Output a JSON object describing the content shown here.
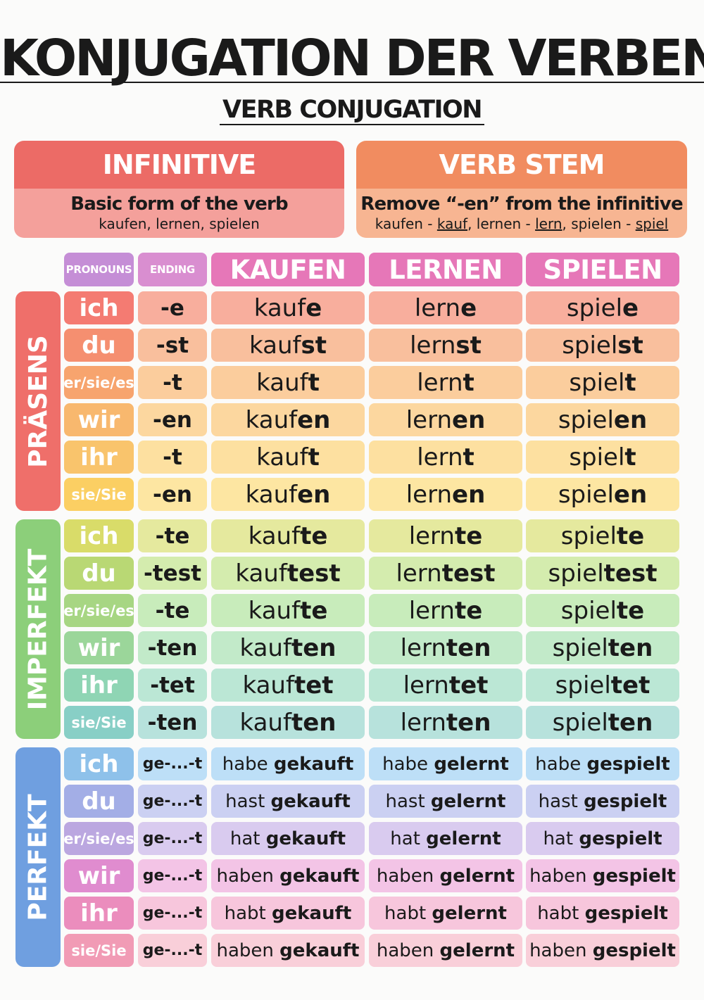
{
  "title": "KONJUGATION DER VERBEN",
  "subtitle": "VERB CONJUGATION",
  "infinitive_box": {
    "heading": "INFINITIVE",
    "description": "Basic form of the verb",
    "examples": "kaufen, lernen, spielen"
  },
  "stem_box": {
    "heading": "VERB STEM",
    "description": "Remove “-en” from the infinitive",
    "examples": [
      {
        "inf": "kaufen",
        "stem": "kauf"
      },
      {
        "inf": "lernen",
        "stem": "lern"
      },
      {
        "inf": "spielen",
        "stem": "spiel"
      }
    ]
  },
  "table": {
    "headers": {
      "pronouns": "PRONOUNS",
      "ending": "ENDING",
      "verbs": [
        "KAUFEN",
        "LERNEN",
        "SPIELEN"
      ]
    },
    "tenses": [
      {
        "name": "PRÄSENS",
        "rows": [
          {
            "pronoun": "ich",
            "ending": "-e",
            "forms": [
              [
                "kauf",
                "e"
              ],
              [
                "lern",
                "e"
              ],
              [
                "spiel",
                "e"
              ]
            ]
          },
          {
            "pronoun": "du",
            "ending": "-st",
            "forms": [
              [
                "kauf",
                "st"
              ],
              [
                "lern",
                "st"
              ],
              [
                "spiel",
                "st"
              ]
            ]
          },
          {
            "pronoun": "er/sie/es",
            "ending": "-t",
            "forms": [
              [
                "kauf",
                "t"
              ],
              [
                "lern",
                "t"
              ],
              [
                "spiel",
                "t"
              ]
            ]
          },
          {
            "pronoun": "wir",
            "ending": "-en",
            "forms": [
              [
                "kauf",
                "en"
              ],
              [
                "lern",
                "en"
              ],
              [
                "spiel",
                "en"
              ]
            ]
          },
          {
            "pronoun": "ihr",
            "ending": "-t",
            "forms": [
              [
                "kauf",
                "t"
              ],
              [
                "lern",
                "t"
              ],
              [
                "spiel",
                "t"
              ]
            ]
          },
          {
            "pronoun": "sie/Sie",
            "ending": "-en",
            "forms": [
              [
                "kauf",
                "en"
              ],
              [
                "lern",
                "en"
              ],
              [
                "spiel",
                "en"
              ]
            ]
          }
        ]
      },
      {
        "name": "IMPERFEKT",
        "rows": [
          {
            "pronoun": "ich",
            "ending": "-te",
            "forms": [
              [
                "kauf",
                "te"
              ],
              [
                "lern",
                "te"
              ],
              [
                "spiel",
                "te"
              ]
            ]
          },
          {
            "pronoun": "du",
            "ending": "-test",
            "forms": [
              [
                "kauf",
                "test"
              ],
              [
                "lern",
                "test"
              ],
              [
                "spiel",
                "test"
              ]
            ]
          },
          {
            "pronoun": "er/sie/es",
            "ending": "-te",
            "forms": [
              [
                "kauf",
                "te"
              ],
              [
                "lern",
                "te"
              ],
              [
                "spiel",
                "te"
              ]
            ]
          },
          {
            "pronoun": "wir",
            "ending": "-ten",
            "forms": [
              [
                "kauf",
                "ten"
              ],
              [
                "lern",
                "ten"
              ],
              [
                "spiel",
                "ten"
              ]
            ]
          },
          {
            "pronoun": "ihr",
            "ending": "-tet",
            "forms": [
              [
                "kauf",
                "tet"
              ],
              [
                "lern",
                "tet"
              ],
              [
                "spiel",
                "tet"
              ]
            ]
          },
          {
            "pronoun": "sie/Sie",
            "ending": "-ten",
            "forms": [
              [
                "kauf",
                "ten"
              ],
              [
                "lern",
                "ten"
              ],
              [
                "spiel",
                "ten"
              ]
            ]
          }
        ]
      },
      {
        "name": "PERFEKT",
        "rows": [
          {
            "pronoun": "ich",
            "ending": "ge-...-t",
            "forms": [
              [
                "habe ",
                "gekauft"
              ],
              [
                "habe ",
                "gelernt"
              ],
              [
                "habe ",
                "gespielt"
              ]
            ]
          },
          {
            "pronoun": "du",
            "ending": "ge-...-t",
            "forms": [
              [
                "hast ",
                "gekauft"
              ],
              [
                "hast ",
                "gelernt"
              ],
              [
                "hast ",
                "gespielt"
              ]
            ]
          },
          {
            "pronoun": "er/sie/es",
            "ending": "ge-...-t",
            "forms": [
              [
                "hat ",
                "gekauft"
              ],
              [
                "hat ",
                "gelernt"
              ],
              [
                "hat ",
                "gespielt"
              ]
            ]
          },
          {
            "pronoun": "wir",
            "ending": "ge-...-t",
            "forms": [
              [
                "haben ",
                "gekauft"
              ],
              [
                "haben ",
                "gelernt"
              ],
              [
                "haben ",
                "gespielt"
              ]
            ]
          },
          {
            "pronoun": "ihr",
            "ending": "ge-...-t",
            "forms": [
              [
                "habt ",
                "gekauft"
              ],
              [
                "habt ",
                "gelernt"
              ],
              [
                "habt ",
                "gespielt"
              ]
            ]
          },
          {
            "pronoun": "sie/Sie",
            "ending": "ge-...-t",
            "forms": [
              [
                "haben ",
                "gekauft"
              ],
              [
                "haben ",
                "gelernt"
              ],
              [
                "haben ",
                "gespielt"
              ]
            ]
          }
        ]
      }
    ]
  },
  "colors": {
    "infinitive_head": "#ec6b66",
    "infinitive_body": "#f4a09b",
    "stem_head": "#f18c60",
    "stem_body": "#f7b592",
    "header_pron": "#c58ed6",
    "header_ending": "#d98ed0",
    "header_verb": "#e677b8",
    "tense_prasens": "#ef6f6a",
    "tense_imperfekt": "#8ccf7a",
    "tense_perfekt": "#6f9fe0",
    "rows": [
      {
        "pron": "#f47b72",
        "cell": "#f8ae9d"
      },
      {
        "pron": "#f58f70",
        "cell": "#f9bf9d"
      },
      {
        "pron": "#f7a46e",
        "cell": "#fbcd9d"
      },
      {
        "pron": "#f8b86e",
        "cell": "#fcd79f"
      },
      {
        "pron": "#f9c46c",
        "cell": "#fde0a0"
      },
      {
        "pron": "#fbcf63",
        "cell": "#fde6a2"
      },
      {
        "pron": "#d9dc69",
        "cell": "#e5e99e"
      },
      {
        "pron": "#b9d874",
        "cell": "#d4ecae"
      },
      {
        "pron": "#a7d683",
        "cell": "#c8ecbb"
      },
      {
        "pron": "#9bd69a",
        "cell": "#c2eac9"
      },
      {
        "pron": "#8fd5b4",
        "cell": "#bbe7d5"
      },
      {
        "pron": "#88cfc6",
        "cell": "#b7e2dc"
      },
      {
        "pron": "#8ec1ea",
        "cell": "#bddff7"
      },
      {
        "pron": "#a3aee6",
        "cell": "#cbd0f2"
      },
      {
        "pron": "#bba7e0",
        "cell": "#d9cbef"
      },
      {
        "pron": "#e08ccf",
        "cell": "#f3c4e6"
      },
      {
        "pron": "#eb8dbd",
        "cell": "#f7c6dc"
      },
      {
        "pron": "#f19bb5",
        "cell": "#f9cfd9"
      }
    ]
  }
}
